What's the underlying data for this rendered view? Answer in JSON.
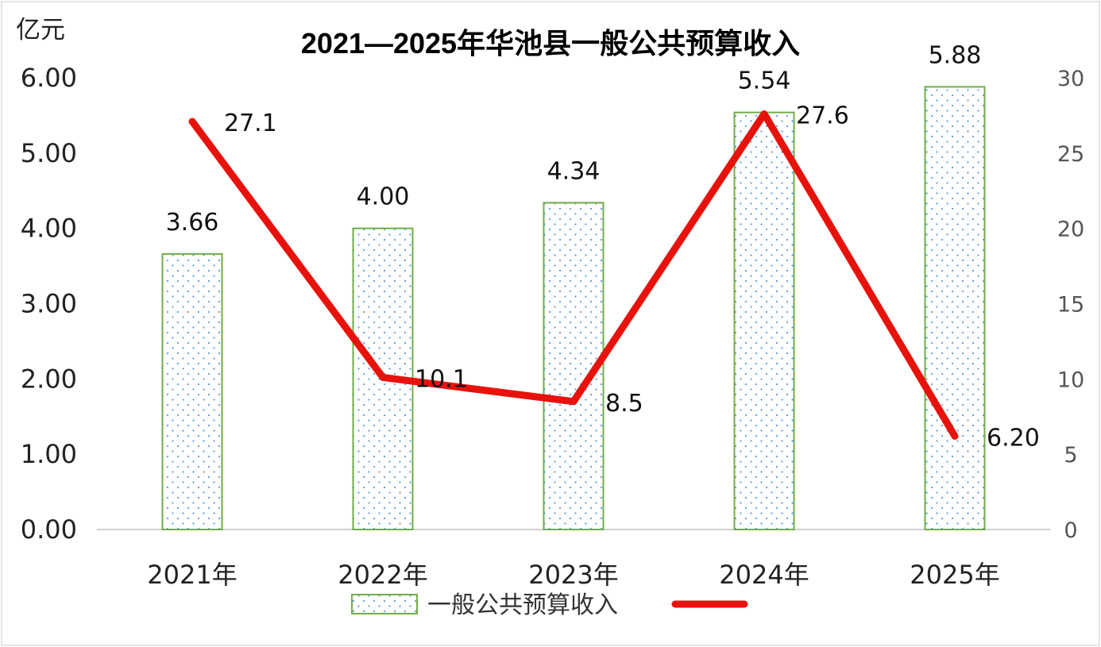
{
  "chart_data": {
    "type": "bar",
    "title": "2021—2025年华池县一般公共预算收入",
    "y_unit_label": "亿元",
    "categories": [
      "2021年",
      "2022年",
      "2023年",
      "2024年",
      "2025年"
    ],
    "bar_series": {
      "name": "一般公共预算收入",
      "values": [
        3.66,
        4.0,
        4.34,
        5.54,
        5.88
      ],
      "labels": [
        "3.66",
        "4.00",
        "4.34",
        "5.54",
        "5.88"
      ],
      "axis": "left"
    },
    "line_series": {
      "name": "",
      "values": [
        27.1,
        10.1,
        8.5,
        27.6,
        6.2
      ],
      "labels": [
        "27.1",
        "10.1",
        "8.5",
        "27.6",
        "6.20"
      ],
      "axis": "right"
    },
    "left_axis": {
      "min": 0,
      "max": 6,
      "ticks": [
        "0.00",
        "1.00",
        "2.00",
        "3.00",
        "4.00",
        "5.00",
        "6.00"
      ]
    },
    "right_axis": {
      "min": 0,
      "max": 30,
      "ticks": [
        "0",
        "5",
        "10",
        "15",
        "20",
        "25",
        "30"
      ]
    },
    "grid": false,
    "legend_position": "bottom",
    "colors": {
      "bar_border": "#70ad47",
      "bar_dots": "#5b9bd5",
      "line": "#e8120c"
    }
  }
}
